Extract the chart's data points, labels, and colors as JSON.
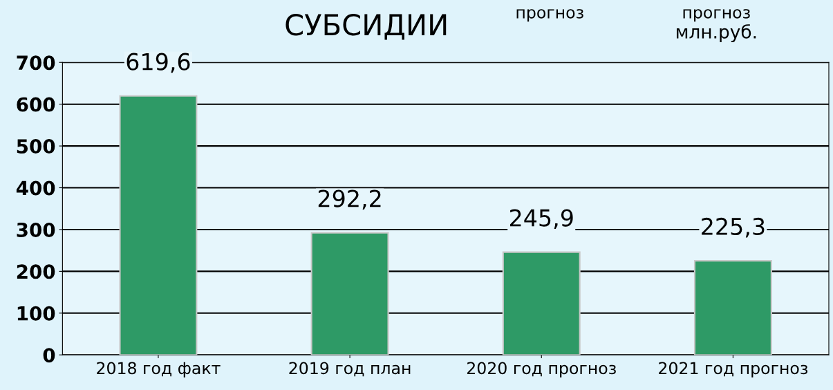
{
  "chart_data": {
    "type": "bar",
    "title": "СУБСИДИИ",
    "annotations": [
      "прогноз",
      "прогноз",
      "млн.руб."
    ],
    "categories": [
      "2018 год факт",
      "2019 год план",
      "2020 год прогноз",
      "2021 год прогноз"
    ],
    "values": [
      619.6,
      292.2,
      245.9,
      225.3
    ],
    "value_labels": [
      "619,6",
      "292,2",
      "245,9",
      "225,3"
    ],
    "color": "#2e9a66",
    "ylim": [
      0,
      700
    ],
    "yticks": [
      0,
      100,
      200,
      300,
      400,
      500,
      600,
      700
    ],
    "grid": "y"
  }
}
